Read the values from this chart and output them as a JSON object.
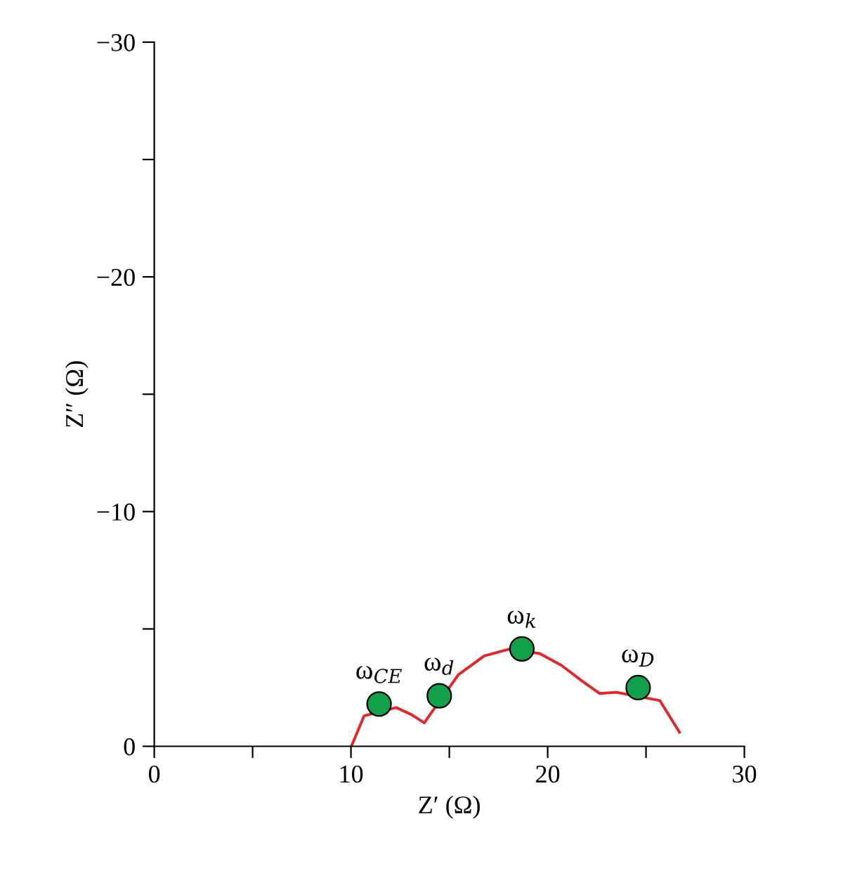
{
  "chart_data": {
    "type": "line",
    "xlabel": "Z′ (Ω)",
    "ylabel": "Z″ (Ω)",
    "xlim": [
      0,
      30
    ],
    "ylim": [
      0,
      -30
    ],
    "xticks": [
      0,
      {
        "value": 5,
        "label": null
      },
      10,
      {
        "value": 15,
        "label": null
      },
      20,
      {
        "value": 25,
        "label": null
      },
      30
    ],
    "yticks": [
      0,
      {
        "value": -5,
        "label": null
      },
      -10,
      {
        "value": -15,
        "label": null
      },
      -20,
      {
        "value": -25,
        "label": null
      },
      -30
    ],
    "grid": false,
    "legend": false,
    "series": [
      {
        "color": "#e3262b",
        "marker": "none",
        "x": [
          10.02,
          10.67,
          12.3,
          13.07,
          13.73,
          14.1,
          15.46,
          16.77,
          18.08,
          19.6,
          20.7,
          21.8,
          22.65,
          23.5,
          25.7,
          26.7
        ],
        "values": [
          0,
          -1.3,
          -1.65,
          -1.35,
          -1.0,
          -1.45,
          -3.05,
          -3.85,
          -4.15,
          -3.95,
          -3.45,
          -2.75,
          -2.25,
          -2.3,
          -1.95,
          -0.6
        ]
      },
      {
        "type": "scatter",
        "color": "#12a04a",
        "marker": "circle",
        "x": [
          11.43,
          14.49,
          18.69,
          24.6
        ],
        "values": [
          -1.8,
          -2.15,
          -4.15,
          -2.5
        ]
      }
    ],
    "annotations": [
      {
        "text": "ω$_{CE}$",
        "x": 11.43,
        "y": -1.8
      },
      {
        "text": "ω$_{d}$",
        "x": 14.49,
        "y": -2.15
      },
      {
        "text": "ω$_{k}$",
        "x": 18.69,
        "y": -4.15
      },
      {
        "text": "ω$_{D}$",
        "x": 24.6,
        "y": -2.5
      }
    ]
  }
}
